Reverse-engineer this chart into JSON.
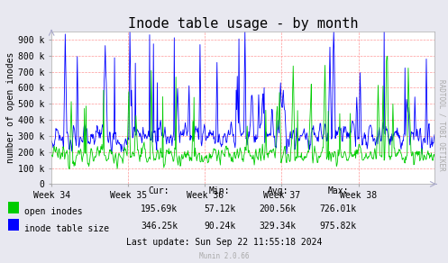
{
  "title": "Inode table usage - by month",
  "ylabel": "number of open inodes",
  "xlabel_ticks": [
    "Week 34",
    "Week 35",
    "Week 36",
    "Week 37",
    "Week 38"
  ],
  "ylim": [
    0,
    950000
  ],
  "yticks": [
    0,
    100000,
    200000,
    300000,
    400000,
    500000,
    600000,
    700000,
    800000,
    900000
  ],
  "ytick_labels": [
    "0",
    "100 k",
    "200 k",
    "300 k",
    "400 k",
    "500 k",
    "600 k",
    "700 k",
    "800 k",
    "900 k"
  ],
  "background_color": "#e8e8f0",
  "plot_bg_color": "#ffffff",
  "grid_color": "#ff9999",
  "line1_color": "#00cc00",
  "line2_color": "#0000ff",
  "legend": [
    "open inodes",
    "inode table size"
  ],
  "legend_colors": [
    "#00cc00",
    "#0000ff"
  ],
  "stats_header": [
    "Cur:",
    "Min:",
    "Avg:",
    "Max:"
  ],
  "stats_line1": [
    "195.69k",
    "57.12k",
    "200.56k",
    "726.01k"
  ],
  "stats_line2": [
    "346.25k",
    "90.24k",
    "329.34k",
    "975.82k"
  ],
  "last_update": "Last update: Sun Sep 22 11:55:18 2024",
  "munin_version": "Munin 2.0.66",
  "watermark": "RADTOOL / TOBI OETIKER",
  "title_fontsize": 11,
  "axis_label_fontsize": 7,
  "tick_fontsize": 7,
  "stats_fontsize": 7,
  "watermark_fontsize": 5.5
}
